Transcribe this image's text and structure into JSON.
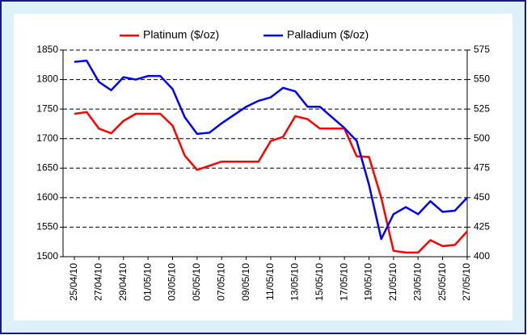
{
  "chart_data": {
    "type": "line",
    "categories": [
      "25/04/10",
      null,
      "27/04/10",
      null,
      "29/04/10",
      null,
      "01/05/10",
      null,
      "03/05/10",
      null,
      "05/05/10",
      null,
      "07/05/10",
      null,
      "09/05/10",
      null,
      "11/05/10",
      null,
      "13/05/10",
      null,
      "15/05/10",
      null,
      "17/05/10",
      null,
      "19/05/10",
      null,
      "21/05/10",
      null,
      "23/05/10",
      null,
      "25/05/10",
      null,
      "27/05/10"
    ],
    "series": [
      {
        "name": "Platinum ($/oz)",
        "color": "#ff0000",
        "values": [
          1742,
          1745,
          1717,
          1709,
          1730,
          1742,
          1742,
          1742,
          1722,
          1671,
          1647,
          1654,
          1661,
          1661,
          1661,
          1661,
          1696,
          1703,
          1738,
          1733,
          1717,
          1717,
          1717,
          1670,
          1669,
          1600,
          1510,
          1507,
          1507,
          1528,
          1518,
          1520,
          1543
        ]
      },
      {
        "name": "Palladium ($/oz)",
        "color": "#0000ff",
        "axis": "y2",
        "values": [
          565,
          566,
          548,
          541,
          552,
          550,
          553,
          553,
          542,
          518,
          504,
          505,
          513,
          520,
          527,
          532,
          535,
          543,
          540,
          527,
          527,
          518,
          509,
          498,
          461,
          415,
          436,
          442,
          436,
          447,
          438,
          439,
          450
        ]
      }
    ],
    "ylim": [
      1500,
      1850
    ],
    "yticks": [
      1500,
      1550,
      1600,
      1650,
      1700,
      1750,
      1800,
      1850
    ],
    "y2lim": [
      400,
      575
    ],
    "y2ticks": [
      400,
      425,
      450,
      475,
      500,
      525,
      550,
      575
    ],
    "grid": true,
    "legend": "top"
  }
}
